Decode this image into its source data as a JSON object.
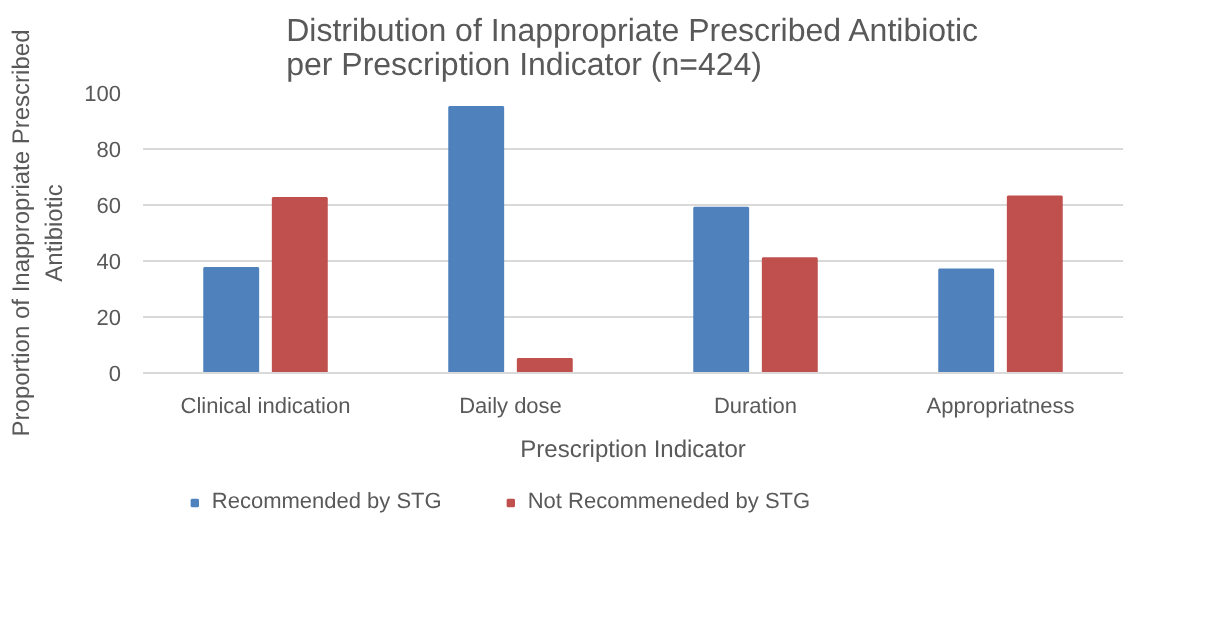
{
  "chart_data": {
    "type": "bar",
    "title": "Distribution of Inappropriate Prescribed Antibiotic per Prescription Indicator (n=424)",
    "xlabel": "Prescription Indicator",
    "ylabel": "Proportion of Inappropriate Prescribed Antibiotic",
    "categories": [
      "Clinical indication",
      "Daily dose",
      "Duration",
      "Appropriatness"
    ],
    "series": [
      {
        "name": "Recommended by STG",
        "color": "#4f81bd",
        "values": [
          37.5,
          95,
          59,
          37
        ]
      },
      {
        "name": "Not Recommeneded by STG",
        "color": "#c0504d",
        "values": [
          62.5,
          5,
          41,
          63
        ]
      }
    ],
    "ylim": [
      0,
      100
    ],
    "yticks": [
      0,
      20,
      40,
      60,
      80,
      100
    ],
    "grid": "y",
    "legend": "bottom"
  }
}
